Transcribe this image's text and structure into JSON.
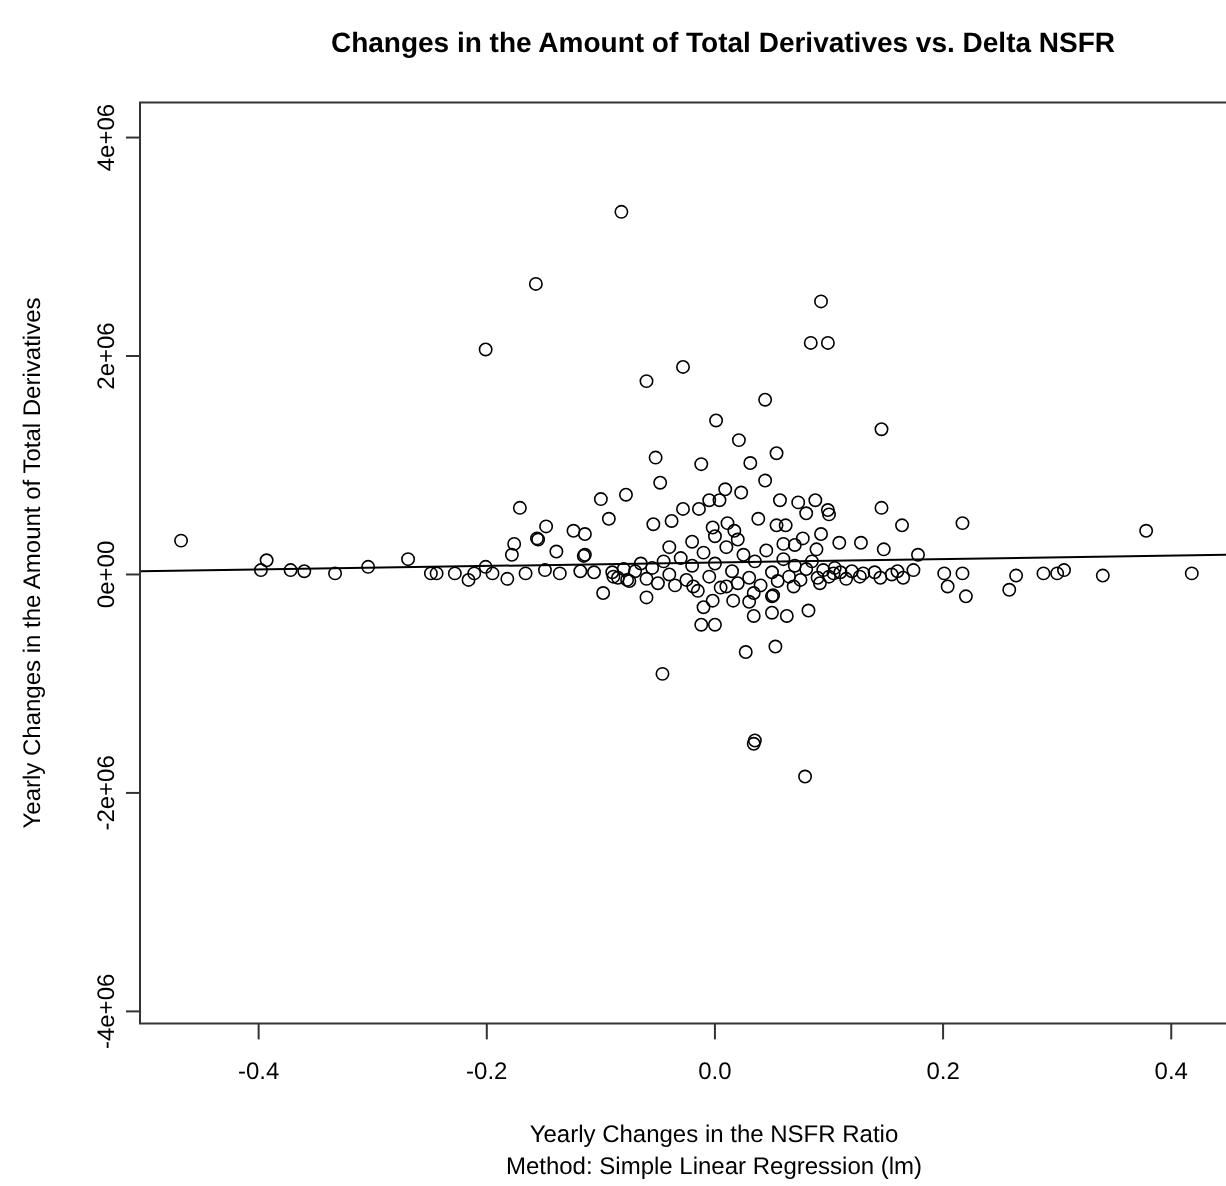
{
  "chart_data": {
    "type": "scatter",
    "title": "Changes in the Amount of Total Derivatives vs. Delta NSFR",
    "xlabel": "Yearly Changes in the NSFR Ratio",
    "ylabel": "Yearly Changes in the Amount of Total Derivatives",
    "annotations": [
      "Method: Simple Linear Regression (lm)"
    ],
    "xlim": [
      -0.504,
      0.448
    ],
    "ylim": [
      -4110000,
      4320000
    ],
    "xticks": [
      -0.4,
      -0.2,
      {
        "value": 0,
        "label": "0.0"
      },
      0.2,
      0.4
    ],
    "yticks": [
      {
        "value": -4000000,
        "label": "-4e+06"
      },
      {
        "value": -2000000,
        "label": "-2e+06"
      },
      {
        "value": 0,
        "label": "0e+00"
      },
      {
        "value": 2000000,
        "label": "2e+06"
      },
      {
        "value": 4000000,
        "label": "4e+06"
      }
    ],
    "grid": false,
    "series": [
      {
        "color": "#000000",
        "marker": "circle",
        "x": [
          -0.082,
          -0.157,
          -0.201,
          0.093,
          0.084,
          0.099,
          -0.028,
          -0.06,
          0.044,
          0.146,
          0.001,
          0.021,
          0.054,
          0.031,
          -0.052,
          -0.012,
          -0.048,
          0.044,
          0.009,
          0.023,
          -0.078,
          -0.1,
          -0.171,
          -0.093,
          -0.148,
          -0.124,
          -0.114,
          -0.156,
          -0.176,
          -0.139,
          -0.114,
          -0.028,
          -0.014,
          -0.005,
          0.004,
          -0.038,
          -0.054,
          0.038,
          0.057,
          0.073,
          0.088,
          0.08,
          0.099,
          0.1,
          0.054,
          0.062,
          0.093,
          0.146,
          0.164,
          0.217,
          0.378,
          0.128,
          0.109,
          0.148,
          0.178,
          -0.468,
          0.017,
          -0.002,
          0.011,
          0.077,
          0.089,
          0.07,
          -0.398,
          -0.393,
          -0.372,
          -0.36,
          -0.333,
          -0.304,
          -0.269,
          -0.249,
          -0.244,
          -0.228,
          -0.216,
          -0.211,
          -0.201,
          -0.195,
          -0.182,
          -0.178,
          -0.155,
          -0.115,
          -0.098,
          -0.06,
          -0.046,
          -0.166,
          -0.149,
          -0.136,
          -0.118,
          -0.106,
          -0.089,
          -0.077,
          0.027,
          0.053,
          -0.012,
          0.0,
          0.034,
          0.05,
          0.063,
          0.082,
          0.016,
          -0.002,
          0.051,
          0.201,
          0.217,
          0.204,
          0.22,
          0.258,
          0.264,
          0.288,
          0.3,
          0.306,
          0.34,
          0.418,
          0.174,
          0.165,
          0.145,
          0.127,
          0.104,
          -0.019,
          0.01,
          0.034,
          0.069,
          0.092,
          0.035,
          0.034,
          0.079,
          -0.09,
          -0.085,
          -0.08,
          -0.075,
          -0.07,
          -0.065,
          -0.06,
          -0.055,
          -0.05,
          -0.045,
          -0.04,
          -0.035,
          -0.03,
          -0.025,
          -0.02,
          -0.015,
          -0.01,
          -0.005,
          0,
          0.005,
          0.01,
          0.015,
          0.02,
          0.025,
          0.03,
          0.035,
          0.04,
          0.045,
          0.05,
          0.055,
          0.06,
          0.065,
          0.07,
          0.075,
          0.08,
          0.085,
          0.09,
          0.095,
          0.1,
          0.105,
          0.11,
          0.115,
          0.12,
          0.13,
          0.14,
          0.155,
          0.16,
          -0.02,
          0,
          0.02,
          -0.04,
          0.06,
          -0.01,
          0.03,
          0.05
        ],
        "values": [
          3320000,
          2660000,
          2060000,
          2500000,
          2120000,
          2120000,
          1900000,
          1770000,
          1600000,
          1330000,
          1410000,
          1230000,
          1110000,
          1020000,
          1070000,
          1010000,
          840000,
          860000,
          780000,
          750000,
          730000,
          690000,
          610000,
          510000,
          440000,
          400000,
          370000,
          330000,
          280000,
          210000,
          180000,
          600000,
          600000,
          680000,
          680000,
          490000,
          460000,
          510000,
          680000,
          660000,
          680000,
          560000,
          590000,
          550000,
          450000,
          450000,
          370000,
          610000,
          450000,
          470000,
          400000,
          290000,
          290000,
          230000,
          180000,
          310000,
          400000,
          430000,
          470000,
          330000,
          230000,
          270000,
          40000,
          130000,
          40000,
          30000,
          10000,
          70000,
          140000,
          10000,
          10000,
          10000,
          -50000,
          10000,
          70000,
          10000,
          -40000,
          180000,
          320000,
          170000,
          -170000,
          -210000,
          -910000,
          10000,
          40000,
          10000,
          30000,
          20000,
          -20000,
          -50000,
          -710000,
          -660000,
          -460000,
          -460000,
          -380000,
          -350000,
          -380000,
          -330000,
          -240000,
          -240000,
          -190000,
          10000,
          10000,
          -110000,
          -200000,
          -140000,
          -10000,
          10000,
          10000,
          40000,
          -10000,
          10000,
          40000,
          -30000,
          -30000,
          -20000,
          10000,
          -110000,
          -110000,
          -170000,
          -110000,
          -80000,
          -1520000,
          -1550000,
          -1850000,
          20000,
          -30000,
          50000,
          -60000,
          30000,
          100000,
          -40000,
          60000,
          -80000,
          120000,
          0,
          -100000,
          150000,
          -50000,
          80000,
          -150000,
          200000,
          -20000,
          100000,
          -120000,
          250000,
          30000,
          -80000,
          180000,
          -30000,
          120000,
          -100000,
          220000,
          20000,
          -60000,
          140000,
          -20000,
          80000,
          -50000,
          50000,
          120000,
          -30000,
          40000,
          -20000,
          60000,
          20000,
          -40000,
          30000,
          10000,
          20000,
          0,
          30000,
          300000,
          350000,
          320000,
          250000,
          280000,
          -300000,
          -250000,
          -200000
        ]
      },
      {
        "type": "line",
        "color": "#000000",
        "x": [
          -0.504,
          0.448
        ],
        "values": [
          30000,
          180000
        ]
      }
    ]
  }
}
